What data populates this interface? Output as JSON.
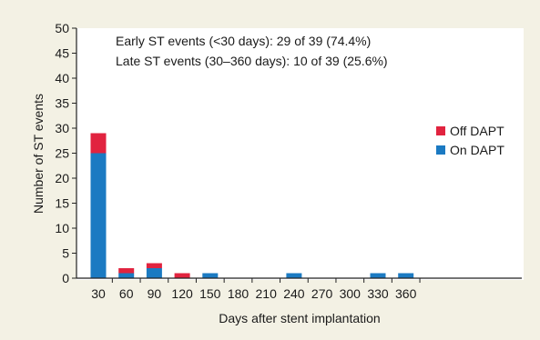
{
  "chart_data": {
    "type": "bar",
    "stacked": true,
    "title": "",
    "xlabel": "Days after stent implantation",
    "ylabel": "Number of ST events",
    "ylim": [
      0,
      50
    ],
    "y_ticks": [
      0,
      5,
      10,
      15,
      20,
      25,
      30,
      35,
      40,
      45,
      50
    ],
    "categories": [
      "30",
      "60",
      "90",
      "120",
      "150",
      "180",
      "210",
      "240",
      "270",
      "300",
      "330",
      "360"
    ],
    "series": [
      {
        "name": "On DAPT",
        "color": "#1b7ac2",
        "values": [
          25,
          1,
          2,
          0,
          1,
          0,
          0,
          1,
          0,
          0,
          1,
          1
        ]
      },
      {
        "name": "Off DAPT",
        "color": "#e1233f",
        "values": [
          4,
          1,
          1,
          1,
          0,
          0,
          0,
          0,
          0,
          0,
          0,
          0
        ]
      }
    ],
    "legend_order": [
      "Off DAPT",
      "On DAPT"
    ],
    "legend_position": "right",
    "grid": false,
    "annotations": [
      "Early ST events (<30 days): 29 of 39 (74.4%)",
      "Late ST events (30–360 days): 10 of 39 (25.6%)"
    ]
  },
  "colors": {
    "background": "#f3f1e4",
    "plot_background": "#ffffff",
    "axis": "#222222"
  }
}
